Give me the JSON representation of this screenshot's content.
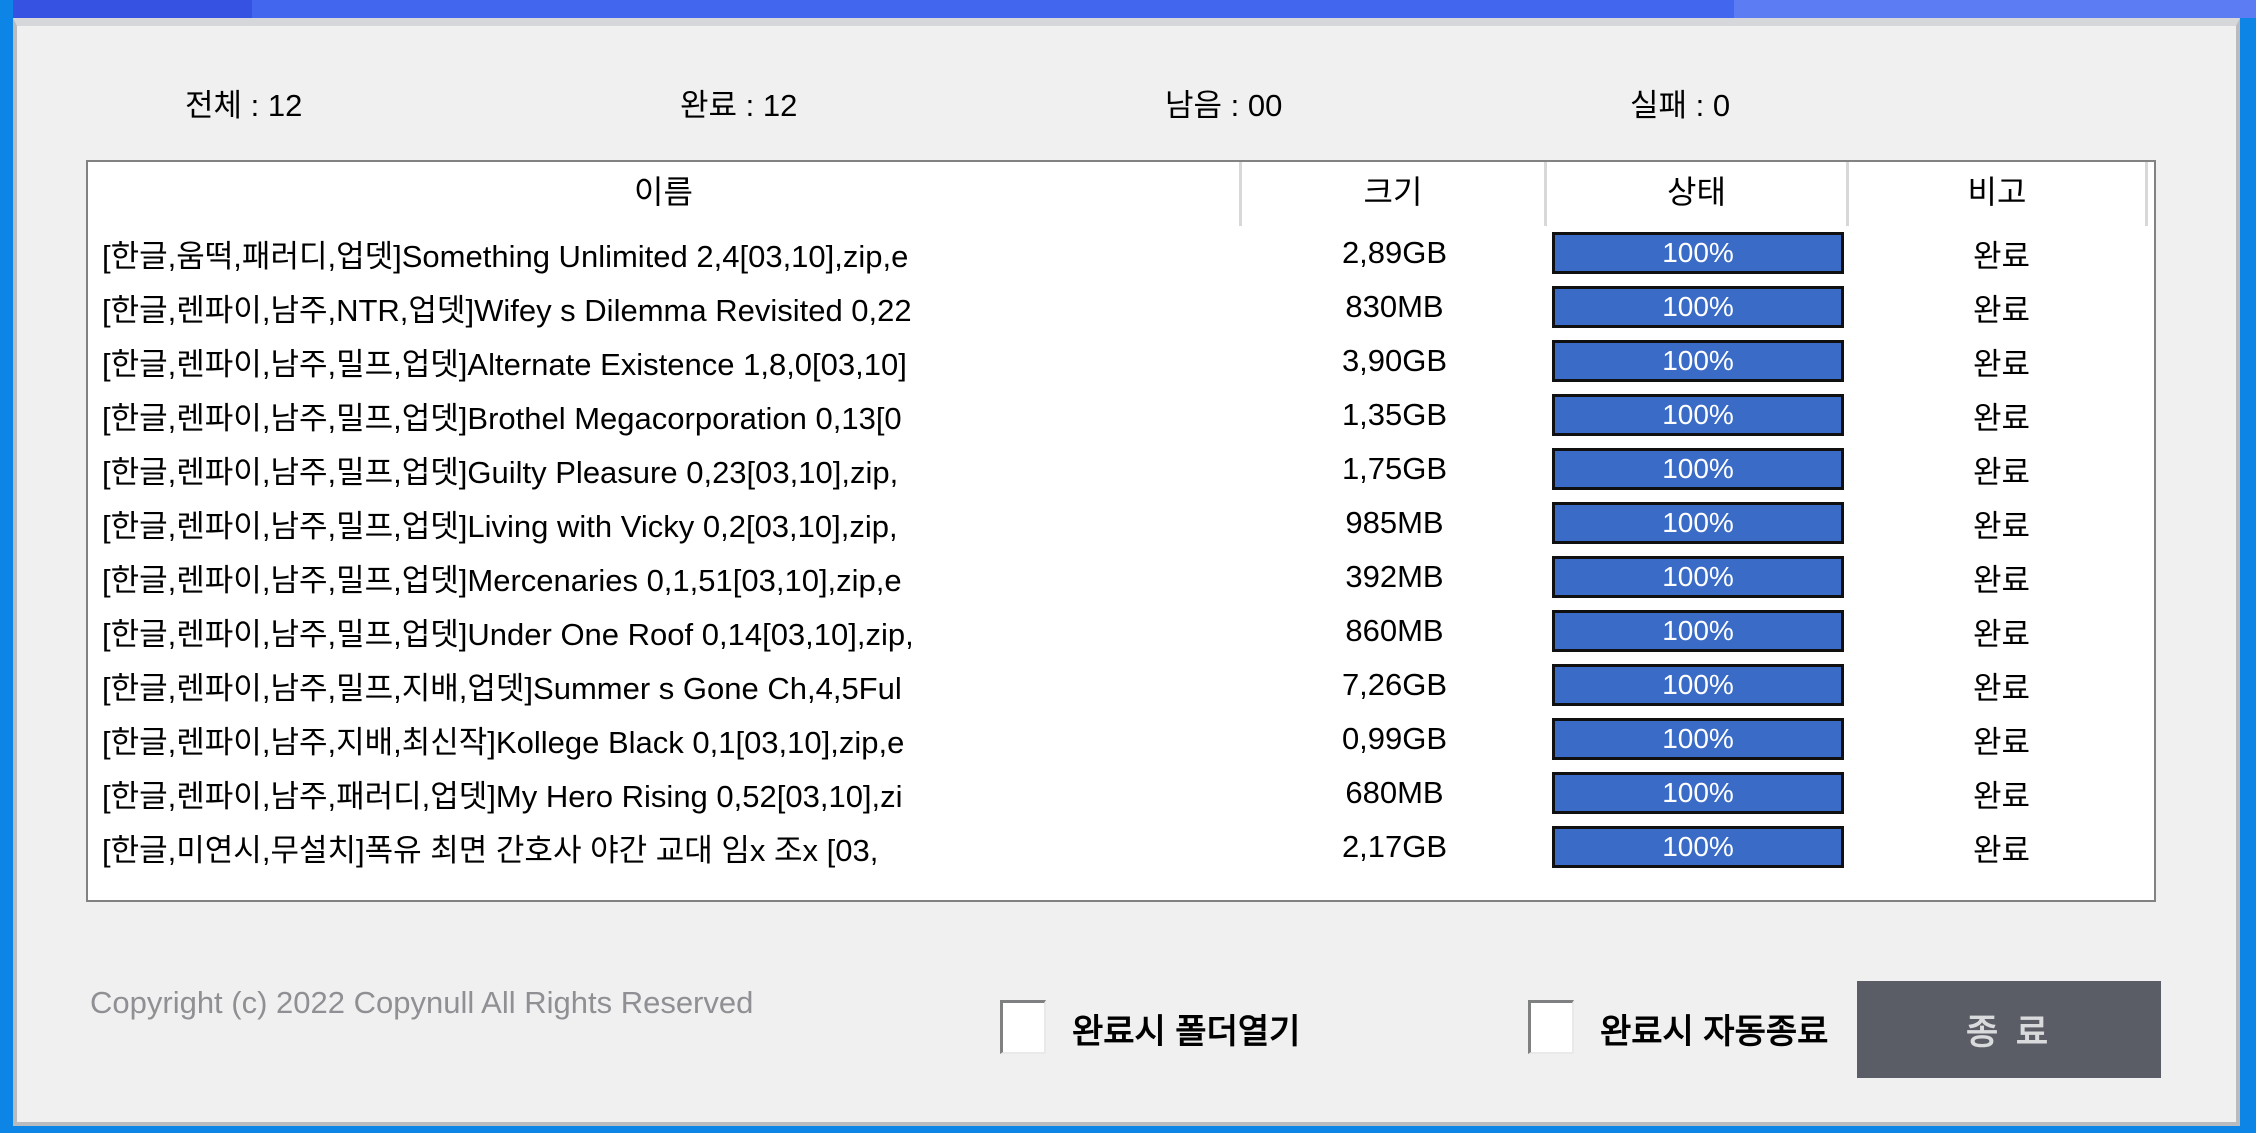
{
  "window": {
    "edge_color": "#0c85e7",
    "titlebar_colors": [
      "#3552e2",
      "#4366ee",
      "#5b7cf3"
    ],
    "progress_fill_color": "#3a6bc6"
  },
  "stats": [
    {
      "text": "전체 : 12"
    },
    {
      "text": "완료 : 12"
    },
    {
      "text": "남음 : 00"
    },
    {
      "text": "실패 : 0"
    }
  ],
  "table": {
    "headers": [
      "이름",
      "크기",
      "상태",
      "비고"
    ],
    "rows": [
      {
        "name": "[한글,움떡,패러디,업뎃]Something Unlimited 2,4[03,10],zip,e",
        "size": "2,89GB",
        "progress": "100%",
        "remark": "완료"
      },
      {
        "name": "[한글,렌파이,남주,NTR,업뎃]Wifey s Dilemma Revisited 0,22",
        "size": "830MB",
        "progress": "100%",
        "remark": "완료"
      },
      {
        "name": "[한글,렌파이,남주,밀프,업뎃]Alternate Existence 1,8,0[03,10]",
        "size": "3,90GB",
        "progress": "100%",
        "remark": "완료"
      },
      {
        "name": "[한글,렌파이,남주,밀프,업뎃]Brothel Megacorporation 0,13[0",
        "size": "1,35GB",
        "progress": "100%",
        "remark": "완료"
      },
      {
        "name": "[한글,렌파이,남주,밀프,업뎃]Guilty Pleasure 0,23[03,10],zip,",
        "size": "1,75GB",
        "progress": "100%",
        "remark": "완료"
      },
      {
        "name": "[한글,렌파이,남주,밀프,업뎃]Living with Vicky 0,2[03,10],zip,",
        "size": "985MB",
        "progress": "100%",
        "remark": "완료"
      },
      {
        "name": "[한글,렌파이,남주,밀프,업뎃]Mercenaries 0,1,51[03,10],zip,e",
        "size": "392MB",
        "progress": "100%",
        "remark": "완료"
      },
      {
        "name": "[한글,렌파이,남주,밀프,업뎃]Under One Roof 0,14[03,10],zip,",
        "size": "860MB",
        "progress": "100%",
        "remark": "완료"
      },
      {
        "name": "[한글,렌파이,남주,밀프,지배,업뎃]Summer s Gone Ch,4,5Ful",
        "size": "7,26GB",
        "progress": "100%",
        "remark": "완료"
      },
      {
        "name": "[한글,렌파이,남주,지배,최신작]Kollege Black 0,1[03,10],zip,e",
        "size": "0,99GB",
        "progress": "100%",
        "remark": "완료"
      },
      {
        "name": "[한글,렌파이,남주,패러디,업뎃]My Hero Rising 0,52[03,10],zi",
        "size": "680MB",
        "progress": "100%",
        "remark": "완료"
      },
      {
        "name": "[한글,미연시,무설치]폭유 최면 간호사 야간 교대 임x 조x [03,",
        "size": "2,17GB",
        "progress": "100%",
        "remark": "완료"
      }
    ]
  },
  "footer": {
    "copyright": "Copyright (c) 2022 Copynull All Rights Reserved",
    "checkbox_open_folder_label": "완료시 폴더열기",
    "checkbox_auto_exit_label": "완료시 자동종료",
    "exit_button_label": "종 료"
  }
}
